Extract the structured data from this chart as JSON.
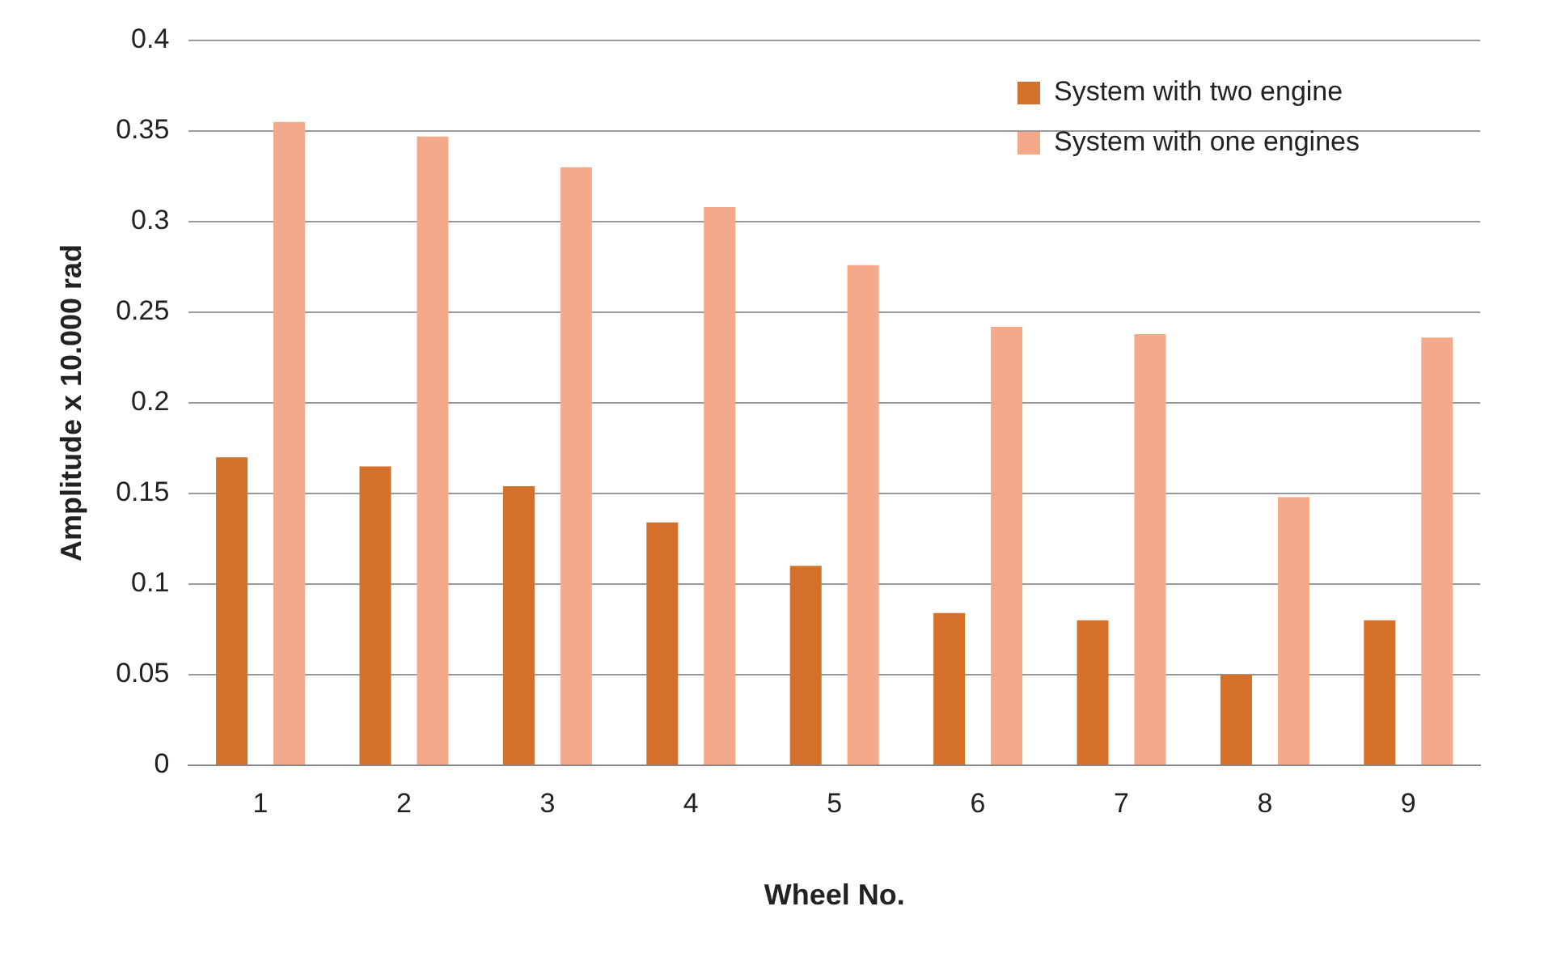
{
  "chart_data": {
    "type": "bar",
    "xlabel": "Wheel No.",
    "ylabel": "Amplitude x 10.000 rad",
    "categories": [
      "1",
      "2",
      "3",
      "4",
      "5",
      "6",
      "7",
      "8",
      "9"
    ],
    "series": [
      {
        "name": "System with two engine",
        "color": "#d4702a",
        "values": [
          0.17,
          0.165,
          0.154,
          0.134,
          0.11,
          0.084,
          0.08,
          0.05,
          0.08
        ]
      },
      {
        "name": "System with one engines",
        "color": "#f4a98a",
        "values": [
          0.355,
          0.347,
          0.33,
          0.308,
          0.276,
          0.242,
          0.238,
          0.148,
          0.236
        ]
      }
    ],
    "ylim": [
      0,
      0.4
    ],
    "yticks": [
      0,
      0.05,
      0.1,
      0.15,
      0.2,
      0.25,
      0.3,
      0.35,
      0.4
    ],
    "grid": "y",
    "legend": "top right"
  }
}
